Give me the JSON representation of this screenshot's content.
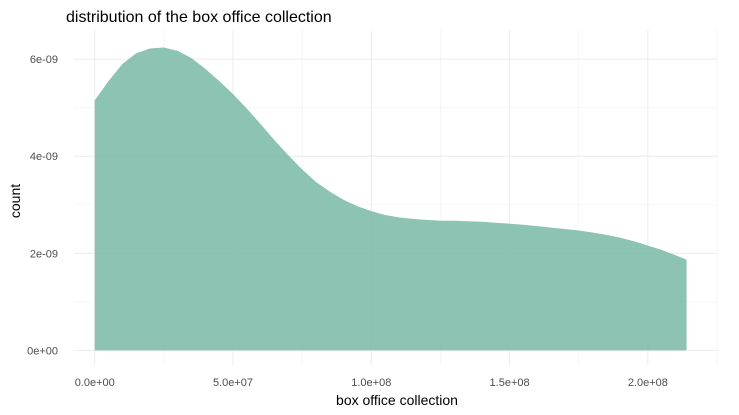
{
  "chart_data": {
    "type": "area",
    "title": "distribution of the box office collection",
    "xlabel": "box office collection",
    "ylabel": "count",
    "x_ticks": [
      {
        "value": 0,
        "label": "0.0e+00"
      },
      {
        "value": 50000000,
        "label": "5.0e+07"
      },
      {
        "value": 100000000,
        "label": "1.0e+08"
      },
      {
        "value": 150000000,
        "label": "1.5e+08"
      },
      {
        "value": 200000000,
        "label": "2.0e+08"
      }
    ],
    "y_ticks": [
      {
        "value": 0,
        "label": "0e+00"
      },
      {
        "value": 2e-09,
        "label": "2e-09"
      },
      {
        "value": 4e-09,
        "label": "4e-09"
      },
      {
        "value": 6e-09,
        "label": "6e-09"
      }
    ],
    "xlim": [
      -7500000,
      225000000
    ],
    "ylim": [
      -3e-10,
      6.6e-09
    ],
    "grid": true,
    "fill_color": "#7fbcaa",
    "x": [
      0,
      5000000,
      10000000,
      15000000,
      20000000,
      25000000,
      30000000,
      35000000,
      40000000,
      45000000,
      50000000,
      55000000,
      60000000,
      65000000,
      70000000,
      75000000,
      80000000,
      85000000,
      90000000,
      95000000,
      100000000,
      105000000,
      110000000,
      115000000,
      120000000,
      125000000,
      130000000,
      135000000,
      140000000,
      145000000,
      150000000,
      155000000,
      160000000,
      165000000,
      170000000,
      175000000,
      180000000,
      185000000,
      190000000,
      195000000,
      200000000,
      205000000,
      210000000,
      214000000
    ],
    "y": [
      5.15e-09,
      5.55e-09,
      5.9e-09,
      6.12e-09,
      6.22e-09,
      6.24e-09,
      6.17e-09,
      6.02e-09,
      5.8e-09,
      5.55e-09,
      5.28e-09,
      4.98e-09,
      4.66e-09,
      4.33e-09,
      4.02e-09,
      3.73e-09,
      3.47e-09,
      3.27e-09,
      3.1e-09,
      2.97e-09,
      2.87e-09,
      2.79e-09,
      2.74e-09,
      2.71e-09,
      2.69e-09,
      2.67e-09,
      2.67e-09,
      2.66e-09,
      2.65e-09,
      2.63e-09,
      2.61e-09,
      2.59e-09,
      2.56e-09,
      2.53e-09,
      2.5e-09,
      2.47e-09,
      2.43e-09,
      2.38e-09,
      2.32e-09,
      2.25e-09,
      2.16e-09,
      2.07e-09,
      1.96e-09,
      1.87e-09
    ]
  }
}
